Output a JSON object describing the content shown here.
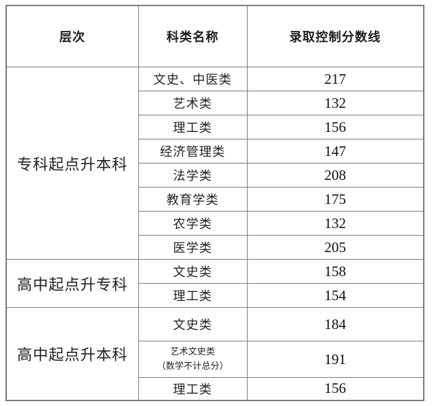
{
  "colors": {
    "background": "#ffffff",
    "border": "#7d7d7d",
    "text": "#1d1d1d"
  },
  "table": {
    "headers": [
      {
        "label": "层次"
      },
      {
        "label": "科类名称"
      },
      {
        "label": "录取控制分数线"
      }
    ],
    "sections": [
      {
        "level": "专科起点升本科",
        "rows": [
          {
            "category": "文史、中医类",
            "score": "217"
          },
          {
            "category": "艺术类",
            "score": "132"
          },
          {
            "category": "理工类",
            "score": "156"
          },
          {
            "category": "经济管理类",
            "score": "147"
          },
          {
            "category": "法学类",
            "score": "208"
          },
          {
            "category": "教育学类",
            "score": "175"
          },
          {
            "category": "农学类",
            "score": "132"
          },
          {
            "category": "医学类",
            "score": "205"
          }
        ]
      },
      {
        "level": "高中起点升专科",
        "rows": [
          {
            "category": "文史类",
            "score": "158"
          },
          {
            "category": "理工类",
            "score": "154"
          }
        ]
      },
      {
        "level": "高中起点升本科",
        "rows": [
          {
            "category": "文史类",
            "score": "184"
          },
          {
            "category": "艺术文史类",
            "category_note": "（数学不计总分）",
            "score": "191"
          },
          {
            "category": "理工类",
            "score": "156"
          }
        ]
      }
    ]
  }
}
